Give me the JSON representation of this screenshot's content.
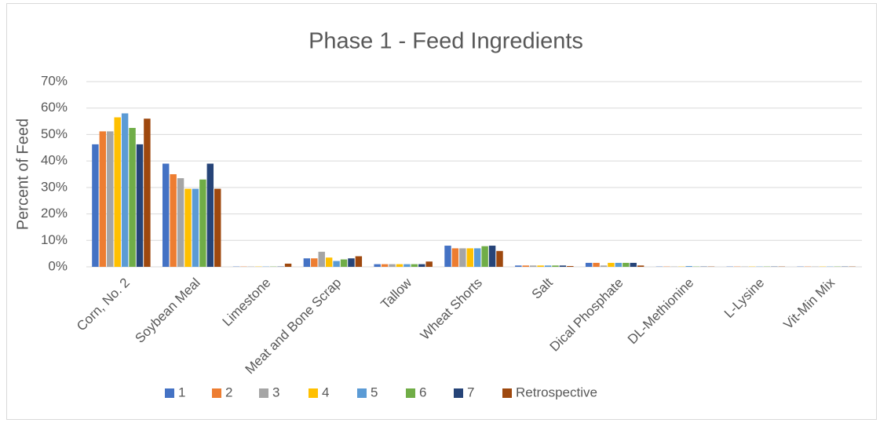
{
  "chart_data": {
    "type": "bar",
    "title": "Phase 1 - Feed Ingredients",
    "y_label": "Percent of Feed",
    "categories": [
      "Corn, No. 2",
      "Soybean Meal",
      "Limestone",
      "Meat and Bone Scrap",
      "Tallow",
      "Wheat Shorts",
      "Salt",
      "Dical Phosphate",
      "DL-Methionine",
      "L-Lysine",
      "Vit-Min Mix"
    ],
    "series": [
      {
        "name": "1",
        "color": "#4472c4",
        "values": [
          46.3,
          39,
          0.1,
          3.2,
          1,
          8,
          0.5,
          1.5,
          0.1,
          0.1,
          0.1
        ]
      },
      {
        "name": "2",
        "color": "#ed7d31",
        "values": [
          51.2,
          35,
          0.1,
          3.2,
          1,
          7,
          0.5,
          1.5,
          0.1,
          0.1,
          0.1
        ]
      },
      {
        "name": "3",
        "color": "#a5a5a5",
        "values": [
          51.2,
          33.5,
          0.1,
          5.7,
          1,
          7,
          0.5,
          0.5,
          0.1,
          0.1,
          0.1
        ]
      },
      {
        "name": "4",
        "color": "#ffc000",
        "values": [
          56.5,
          29.5,
          0.1,
          3.5,
          1,
          7,
          0.5,
          1.5,
          0.1,
          0.1,
          0.1
        ]
      },
      {
        "name": "5",
        "color": "#5b9bd5",
        "values": [
          58,
          29.5,
          0.1,
          2.2,
          1,
          7,
          0.5,
          1.5,
          0.3,
          0.1,
          0.1
        ]
      },
      {
        "name": "6",
        "color": "#70ad47",
        "values": [
          52.5,
          33,
          0.1,
          2.8,
          1,
          7.8,
          0.5,
          1.5,
          0.1,
          0.1,
          0.1
        ]
      },
      {
        "name": "7",
        "color": "#264478",
        "values": [
          46.3,
          39,
          0.1,
          3.2,
          1,
          8,
          0.5,
          1.5,
          0.1,
          0.1,
          0.1
        ]
      },
      {
        "name": "Retrospective",
        "color": "#9e480e",
        "values": [
          56,
          29.5,
          1.2,
          4,
          2,
          6,
          0.3,
          0.5,
          0.1,
          0.1,
          0.1
        ]
      }
    ],
    "ylim": [
      0,
      70
    ],
    "yticks": [
      {
        "value": 0,
        "label": "0%"
      },
      {
        "value": 10,
        "label": "10%"
      },
      {
        "value": 20,
        "label": "20%"
      },
      {
        "value": 30,
        "label": "30%"
      },
      {
        "value": 40,
        "label": "40%"
      },
      {
        "value": 50,
        "label": "50%"
      },
      {
        "value": 60,
        "label": "60%"
      },
      {
        "value": 70,
        "label": "70%"
      }
    ],
    "grid": true,
    "legend": "bottom"
  }
}
